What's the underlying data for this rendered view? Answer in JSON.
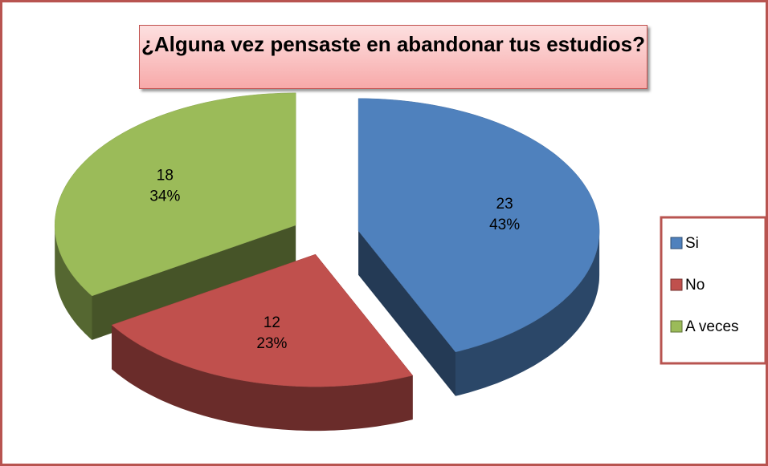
{
  "chart_data": {
    "type": "pie3d",
    "title": "¿Alguna vez pensaste en abandonar tus estudios?",
    "categories": [
      "Si",
      "No",
      "A veces"
    ],
    "values": [
      23,
      12,
      18
    ],
    "percent_labels": [
      "43%",
      "23%",
      "34%"
    ],
    "colors": [
      "#4f81bd",
      "#c0504d",
      "#9bbb59"
    ],
    "legend": "right"
  }
}
